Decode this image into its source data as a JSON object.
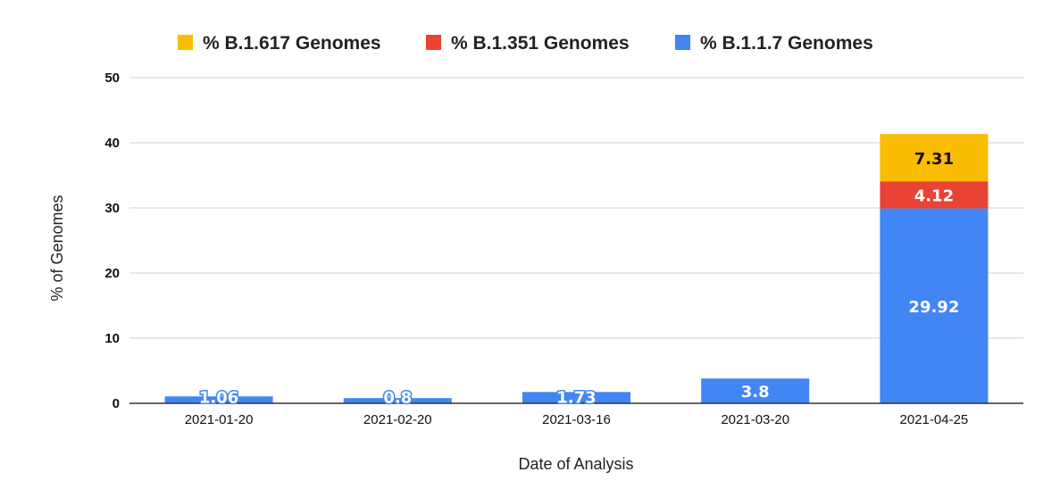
{
  "chart_data": {
    "type": "bar",
    "stacked": true,
    "title": "",
    "xlabel": "Date of Analysis",
    "ylabel": "% of Genomes",
    "ylim": [
      0,
      50
    ],
    "yticks": [
      0,
      10,
      20,
      30,
      40,
      50
    ],
    "grid": true,
    "legend_position": "top",
    "categories": [
      "2021-01-20",
      "2021-02-20",
      "2021-03-16",
      "2021-03-20",
      "2021-04-25"
    ],
    "series": [
      {
        "name": "% B.1.1.7 Genomes",
        "color": "#4285f4",
        "label_color": "#ffffff",
        "values": [
          1.06,
          0.8,
          1.73,
          3.8,
          29.92
        ]
      },
      {
        "name": "% B.1.351 Genomes",
        "color": "#ea4335",
        "label_color": "#ffffff",
        "values": [
          null,
          null,
          null,
          null,
          4.12
        ]
      },
      {
        "name": "% B.1.617 Genomes",
        "color": "#fbbc04",
        "label_color": "#111111",
        "values": [
          null,
          null,
          null,
          null,
          7.31
        ]
      }
    ],
    "legend_order": [
      2,
      1,
      0
    ]
  }
}
